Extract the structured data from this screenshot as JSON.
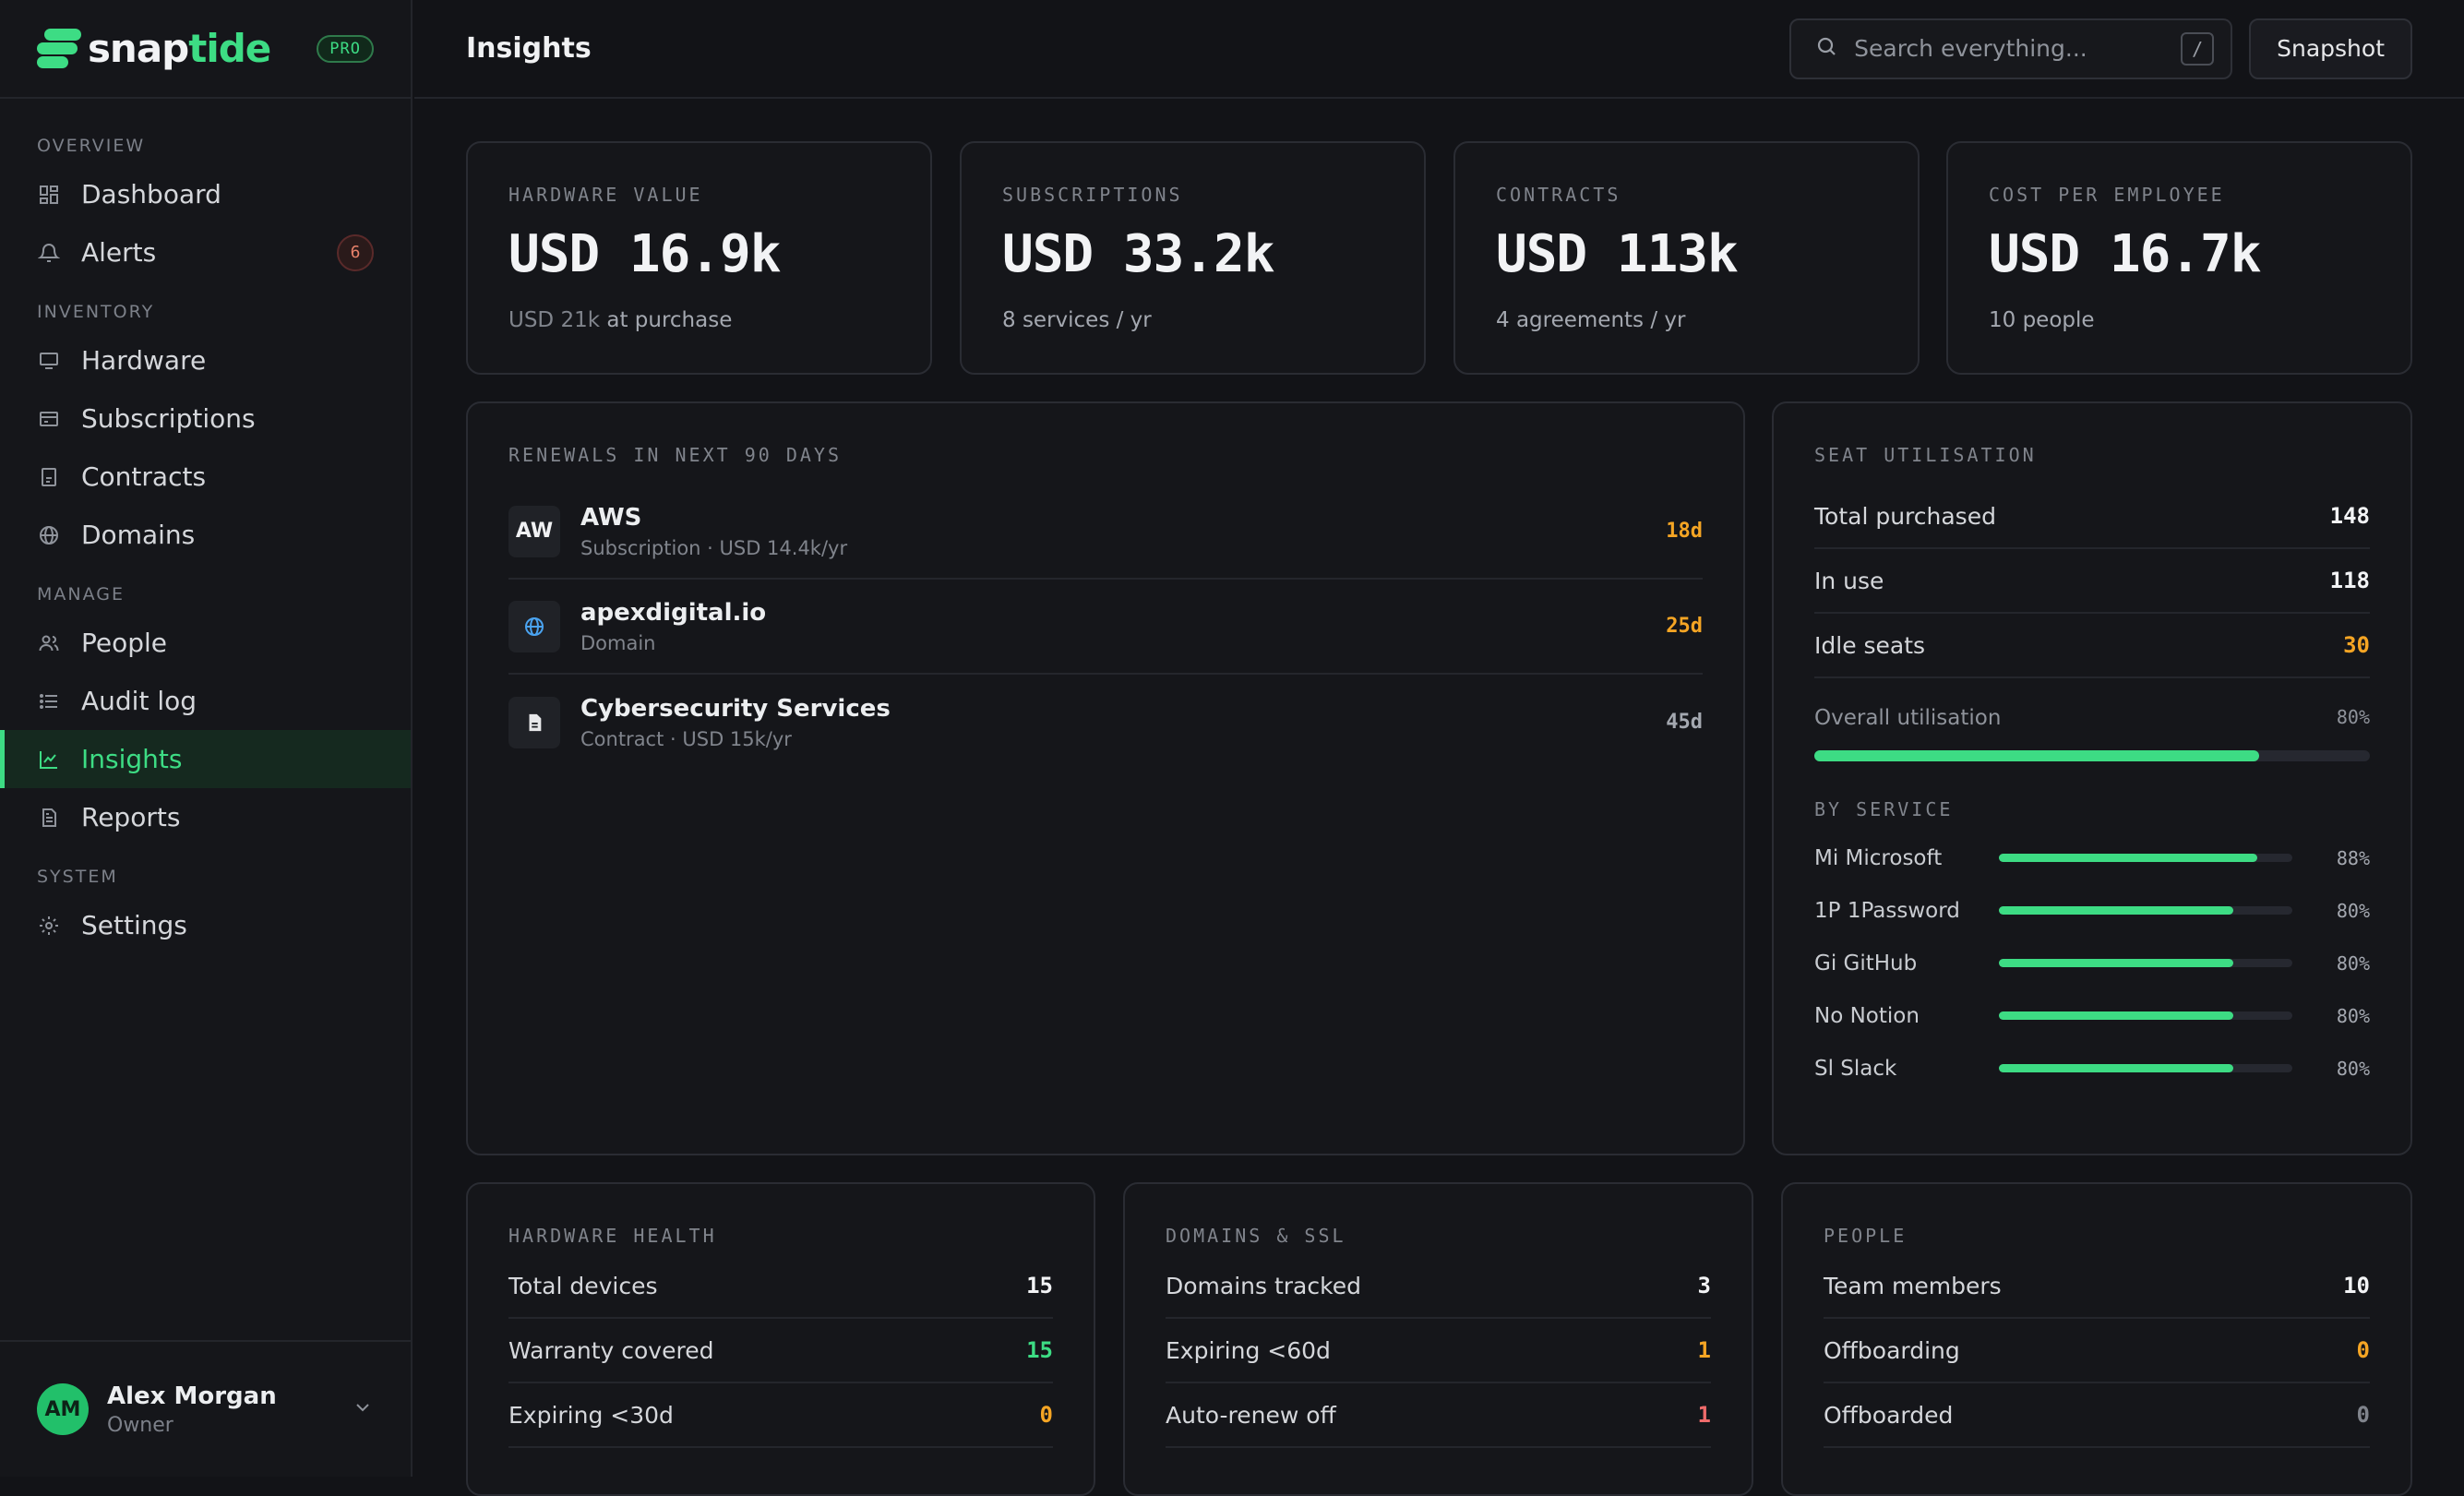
{
  "brand": {
    "name_main": "snap",
    "name_accent": "tide",
    "badge": "PRO"
  },
  "sidebar": {
    "sections": [
      {
        "title": "OVERVIEW",
        "items": [
          {
            "label": "Dashboard",
            "icon": "dashboard-icon"
          },
          {
            "label": "Alerts",
            "icon": "bell-icon",
            "badge": "6"
          }
        ]
      },
      {
        "title": "INVENTORY",
        "items": [
          {
            "label": "Hardware",
            "icon": "monitor-icon"
          },
          {
            "label": "Subscriptions",
            "icon": "card-icon"
          },
          {
            "label": "Contracts",
            "icon": "contract-icon"
          },
          {
            "label": "Domains",
            "icon": "globe-icon"
          }
        ]
      },
      {
        "title": "MANAGE",
        "items": [
          {
            "label": "People",
            "icon": "people-icon"
          },
          {
            "label": "Audit log",
            "icon": "list-icon"
          },
          {
            "label": "Insights",
            "icon": "chart-icon",
            "active": true
          },
          {
            "label": "Reports",
            "icon": "report-icon"
          }
        ]
      },
      {
        "title": "SYSTEM",
        "items": [
          {
            "label": "Settings",
            "icon": "gear-icon"
          }
        ]
      }
    ],
    "user": {
      "initials": "AM",
      "name": "Alex Morgan",
      "role": "Owner"
    }
  },
  "header": {
    "title": "Insights",
    "search_placeholder": "Search everything...",
    "search_shortcut": "/",
    "snapshot_label": "Snapshot"
  },
  "kpis": [
    {
      "label": "HARDWARE VALUE",
      "value": "USD 16.9k",
      "sub_dim": "USD 21k",
      "sub": "at purchase"
    },
    {
      "label": "SUBSCRIPTIONS",
      "value": "USD 33.2k",
      "sub_dim": "",
      "sub": "8 services / yr"
    },
    {
      "label": "CONTRACTS",
      "value": "USD 113k",
      "sub_dim": "",
      "sub": "4 agreements / yr"
    },
    {
      "label": "COST PER EMPLOYEE",
      "value": "USD 16.7k",
      "sub_dim": "",
      "sub": "10 people"
    }
  ],
  "renewals": {
    "label": "RENEWALS IN NEXT 90 DAYS",
    "items": [
      {
        "icon_text": "AW",
        "icon": "aws-icon",
        "title": "AWS",
        "sub": "Subscription · USD 14.4k/yr",
        "days": "18d",
        "color": "#f5a524"
      },
      {
        "icon_text": "",
        "icon": "globe-icon",
        "title": "apexdigital.io",
        "sub": "Domain",
        "days": "25d",
        "color": "#f5a524"
      },
      {
        "icon_text": "",
        "icon": "document-icon",
        "title": "Cybersecurity Services",
        "sub": "Contract · USD 15k/yr",
        "days": "45d",
        "color": "#a4a8b0"
      }
    ]
  },
  "seat": {
    "label": "SEAT UTILISATION",
    "rows": [
      {
        "label": "Total purchased",
        "value": "148",
        "color": "#f2f3f5"
      },
      {
        "label": "In use",
        "value": "118",
        "color": "#f2f3f5"
      },
      {
        "label": "Idle seats",
        "value": "30",
        "color": "#f5a524"
      }
    ],
    "overall_label": "Overall utilisation",
    "overall_pct": "80%",
    "overall_value": 80,
    "by_service_label": "BY SERVICE",
    "services": [
      {
        "name": "Mi Microsoft",
        "pct": "88%",
        "value": 88
      },
      {
        "name": "1P 1Password",
        "pct": "80%",
        "value": 80
      },
      {
        "name": "Gi GitHub",
        "pct": "80%",
        "value": 80
      },
      {
        "name": "No Notion",
        "pct": "80%",
        "value": 80
      },
      {
        "name": "Sl Slack",
        "pct": "80%",
        "value": 80
      }
    ]
  },
  "hardware_health": {
    "label": "HARDWARE HEALTH",
    "rows": [
      {
        "label": "Total devices",
        "value": "15",
        "color": "#f2f3f5"
      },
      {
        "label": "Warranty covered",
        "value": "15",
        "color": "#3ddc84"
      },
      {
        "label": "Expiring <30d",
        "value": "0",
        "color": "#f5a524"
      }
    ]
  },
  "domains_ssl": {
    "label": "DOMAINS & SSL",
    "rows": [
      {
        "label": "Domains tracked",
        "value": "3",
        "color": "#f2f3f5"
      },
      {
        "label": "Expiring <60d",
        "value": "1",
        "color": "#f5a524"
      },
      {
        "label": "Auto-renew off",
        "value": "1",
        "color": "#ef6b6b"
      }
    ]
  },
  "people": {
    "label": "PEOPLE",
    "rows": [
      {
        "label": "Team members",
        "value": "10",
        "color": "#f2f3f5"
      },
      {
        "label": "Offboarding",
        "value": "0",
        "color": "#f5a524"
      },
      {
        "label": "Offboarded",
        "value": "0",
        "color": "#80848c"
      }
    ]
  }
}
